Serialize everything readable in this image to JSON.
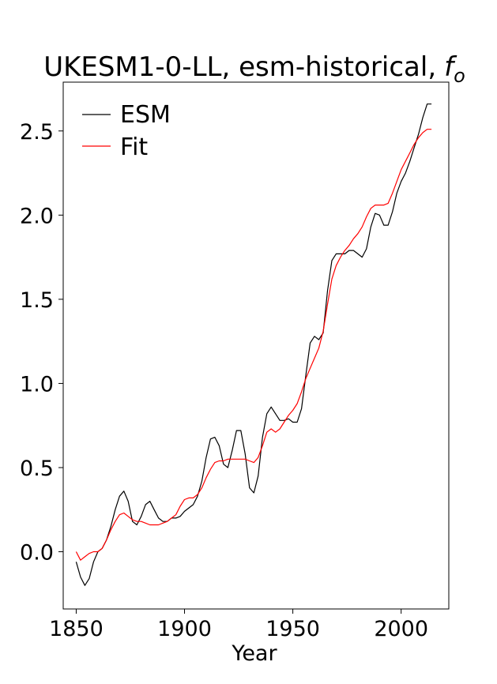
{
  "chart_data": {
    "type": "line",
    "title": "UKESM1-0-LL, esm-historical,",
    "title_math": "f",
    "title_math_sub": "o",
    "xlabel": "Year",
    "ylabel": "",
    "xlim": [
      1844,
      2022
    ],
    "ylim": [
      -0.34,
      2.79
    ],
    "xticks": [
      1850,
      1900,
      1950,
      2000
    ],
    "yticks": [
      0.0,
      0.5,
      1.0,
      1.5,
      2.0,
      2.5
    ],
    "ytick_labels": [
      "0.0",
      "0.5",
      "1.0",
      "1.5",
      "2.0",
      "2.5"
    ],
    "grid": false,
    "legend_position": "top-left",
    "series": [
      {
        "name": "ESM",
        "color": "#000000",
        "x": [
          1850,
          1852,
          1854,
          1856,
          1858,
          1860,
          1862,
          1864,
          1866,
          1868,
          1870,
          1872,
          1874,
          1876,
          1878,
          1880,
          1882,
          1884,
          1886,
          1888,
          1890,
          1892,
          1894,
          1896,
          1898,
          1900,
          1902,
          1904,
          1906,
          1908,
          1910,
          1912,
          1914,
          1916,
          1918,
          1920,
          1922,
          1924,
          1926,
          1928,
          1930,
          1932,
          1934,
          1936,
          1938,
          1940,
          1942,
          1944,
          1946,
          1948,
          1950,
          1952,
          1954,
          1956,
          1958,
          1960,
          1962,
          1964,
          1966,
          1968,
          1970,
          1972,
          1974,
          1976,
          1978,
          1980,
          1982,
          1984,
          1986,
          1988,
          1990,
          1992,
          1994,
          1996,
          1998,
          2000,
          2002,
          2004,
          2006,
          2008,
          2010,
          2012,
          2014
        ],
        "y": [
          -0.06,
          -0.15,
          -0.2,
          -0.16,
          -0.06,
          0.0,
          0.02,
          0.07,
          0.15,
          0.25,
          0.33,
          0.36,
          0.3,
          0.18,
          0.16,
          0.21,
          0.28,
          0.3,
          0.25,
          0.2,
          0.18,
          0.18,
          0.2,
          0.2,
          0.21,
          0.24,
          0.26,
          0.28,
          0.33,
          0.42,
          0.56,
          0.67,
          0.68,
          0.63,
          0.52,
          0.5,
          0.6,
          0.72,
          0.72,
          0.58,
          0.38,
          0.35,
          0.45,
          0.68,
          0.82,
          0.86,
          0.82,
          0.78,
          0.78,
          0.79,
          0.77,
          0.77,
          0.85,
          1.05,
          1.24,
          1.28,
          1.26,
          1.3,
          1.55,
          1.73,
          1.77,
          1.77,
          1.77,
          1.79,
          1.79,
          1.77,
          1.75,
          1.8,
          1.93,
          2.01,
          2.0,
          1.94,
          1.94,
          2.02,
          2.13,
          2.2,
          2.25,
          2.32,
          2.4,
          2.48,
          2.58,
          2.66,
          2.66
        ]
      },
      {
        "name": "Fit",
        "color": "#ff0000",
        "x": [
          1850,
          1852,
          1854,
          1856,
          1858,
          1860,
          1862,
          1864,
          1866,
          1868,
          1870,
          1872,
          1874,
          1876,
          1878,
          1880,
          1882,
          1884,
          1886,
          1888,
          1890,
          1892,
          1894,
          1896,
          1898,
          1900,
          1902,
          1904,
          1906,
          1908,
          1910,
          1912,
          1914,
          1916,
          1918,
          1920,
          1922,
          1924,
          1926,
          1928,
          1930,
          1932,
          1934,
          1936,
          1938,
          1940,
          1942,
          1944,
          1946,
          1948,
          1950,
          1952,
          1954,
          1956,
          1958,
          1960,
          1962,
          1964,
          1966,
          1968,
          1970,
          1972,
          1974,
          1976,
          1978,
          1980,
          1982,
          1984,
          1986,
          1988,
          1990,
          1992,
          1994,
          1996,
          1998,
          2000,
          2002,
          2004,
          2006,
          2008,
          2010,
          2012,
          2014
        ],
        "y": [
          0.0,
          -0.05,
          -0.03,
          -0.01,
          0.0,
          0.0,
          0.02,
          0.07,
          0.13,
          0.18,
          0.22,
          0.23,
          0.21,
          0.19,
          0.18,
          0.18,
          0.17,
          0.16,
          0.16,
          0.16,
          0.17,
          0.18,
          0.2,
          0.22,
          0.27,
          0.31,
          0.32,
          0.32,
          0.34,
          0.38,
          0.44,
          0.49,
          0.53,
          0.54,
          0.54,
          0.55,
          0.55,
          0.55,
          0.55,
          0.55,
          0.54,
          0.53,
          0.56,
          0.63,
          0.71,
          0.73,
          0.71,
          0.73,
          0.77,
          0.81,
          0.84,
          0.88,
          0.95,
          1.03,
          1.09,
          1.15,
          1.21,
          1.31,
          1.47,
          1.62,
          1.7,
          1.75,
          1.79,
          1.82,
          1.86,
          1.89,
          1.93,
          1.99,
          2.04,
          2.06,
          2.06,
          2.06,
          2.07,
          2.13,
          2.2,
          2.27,
          2.32,
          2.37,
          2.42,
          2.46,
          2.49,
          2.51,
          2.51
        ]
      }
    ]
  }
}
